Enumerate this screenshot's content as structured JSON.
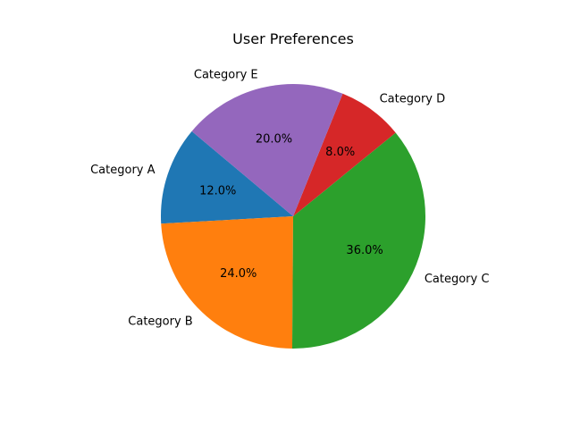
{
  "chart_data": {
    "type": "pie",
    "title": "User Preferences",
    "slices": [
      {
        "label": "Category A",
        "value": 12.0,
        "pct_label": "12.0%",
        "color": "#1f77b4"
      },
      {
        "label": "Category B",
        "value": 24.0,
        "pct_label": "24.0%",
        "color": "#ff7f0e"
      },
      {
        "label": "Category C",
        "value": 36.0,
        "pct_label": "36.0%",
        "color": "#2ca02c"
      },
      {
        "label": "Category D",
        "value": 8.0,
        "pct_label": "8.0%",
        "color": "#d62728"
      },
      {
        "label": "Category E",
        "value": 20.0,
        "pct_label": "20.0%",
        "color": "#9467bd"
      }
    ],
    "start_angle_deg": 140,
    "direction": "counterclockwise",
    "legend": "none"
  }
}
